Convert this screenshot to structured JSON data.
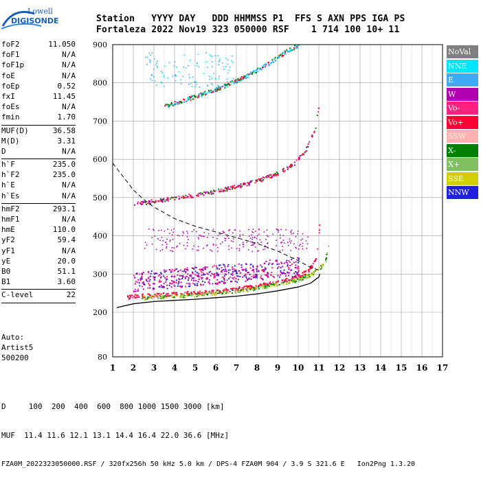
{
  "logo": {
    "line1": "Lowell",
    "line2": "DIGISONDE"
  },
  "header": {
    "line1": "Station   YYYY DAY   DDD HHMMSS P1  FFS S AXN PPS IGA PS",
    "line2": "Fortaleza 2022 Nov19 323 050000 RSF    1 714 100 10+ 11"
  },
  "params": {
    "group1": [
      {
        "name": "foF2",
        "value": "11.050"
      },
      {
        "name": "foF1",
        "value": "N/A"
      },
      {
        "name": "foF1p",
        "value": "N/A"
      },
      {
        "name": "foE",
        "value": "N/A"
      },
      {
        "name": "foEp",
        "value": "0.52"
      },
      {
        "name": "fxI",
        "value": "11.45"
      },
      {
        "name": "foEs",
        "value": "N/A"
      },
      {
        "name": "fmin",
        "value": "1.70"
      }
    ],
    "group2": [
      {
        "name": "MUF(D)",
        "value": "36.58"
      },
      {
        "name": "M(D)",
        "value": "3.31"
      },
      {
        "name": "D",
        "value": "N/A"
      }
    ],
    "group3": [
      {
        "name": "h`F",
        "value": "235.0"
      },
      {
        "name": "h`F2",
        "value": "235.0"
      },
      {
        "name": "h`E",
        "value": "N/A"
      },
      {
        "name": "h`Es",
        "value": "N/A"
      }
    ],
    "group4": [
      {
        "name": "hmF2",
        "value": "293.1"
      },
      {
        "name": "hmF1",
        "value": "N/A"
      },
      {
        "name": "hmE",
        "value": "110.0"
      },
      {
        "name": "yF2",
        "value": "59.4"
      },
      {
        "name": "yF1",
        "value": "N/A"
      },
      {
        "name": "yE",
        "value": "20.0"
      },
      {
        "name": "B0",
        "value": "51.1"
      },
      {
        "name": "B1",
        "value": "3.60"
      }
    ],
    "group5": [
      {
        "name": "C-level",
        "value": "22"
      }
    ]
  },
  "autoscaling": {
    "line1": "Auto:",
    "line2": "Artist5",
    "line3": "500200"
  },
  "legend": [
    {
      "label": "NoVal",
      "color": "#808080"
    },
    {
      "label": "NNE",
      "color": "#00e5ff"
    },
    {
      "label": "E",
      "color": "#3fa9f5"
    },
    {
      "label": "W",
      "color": "#b000b0"
    },
    {
      "label": "Vo-",
      "color": "#ff2080"
    },
    {
      "label": "Vo+",
      "color": "#ff0030"
    },
    {
      "label": "SSW",
      "color": "#ffb0b0"
    },
    {
      "label": "X-",
      "color": "#008000"
    },
    {
      "label": "X+",
      "color": "#80c060"
    },
    {
      "label": "SSE",
      "color": "#d0d000"
    },
    {
      "label": "NNW",
      "color": "#2020e0"
    }
  ],
  "footer": {
    "line1": "D     100  200  400  600  800 1000 1500 3000 [km]",
    "line2": "MUF  11.4 11.6 12.1 13.1 14.4 16.4 22.0 36.6 [MHz]",
    "line3": "FZA0M_2022323050000.RSF / 320fx256h 50 kHz 5.0 km / DPS-4 FZA0M 904 / 3.9 S 321.6 E   Ion2Png 1.3.20"
  },
  "chart_data": {
    "type": "scatter",
    "xlim": [
      1,
      17
    ],
    "ylim": [
      80,
      900
    ],
    "x_ticks": [
      "1",
      "2",
      "3",
      "4",
      "5",
      "6",
      "7",
      "8",
      "9",
      "10",
      "11",
      "12",
      "13",
      "14",
      "15",
      "16",
      "17"
    ],
    "y_ticks": [
      "80",
      "200",
      "300",
      "400",
      "500",
      "600",
      "700",
      "800",
      "900"
    ],
    "grid": true,
    "traces": [
      {
        "name": "O-trace F2",
        "points": [
          [
            1.7,
            240
          ],
          [
            2,
            243
          ],
          [
            3,
            246
          ],
          [
            4,
            249
          ],
          [
            5,
            252
          ],
          [
            6,
            256
          ],
          [
            7,
            262
          ],
          [
            8,
            270
          ],
          [
            9,
            280
          ],
          [
            9.5,
            287
          ],
          [
            10,
            296
          ],
          [
            10.5,
            312
          ],
          [
            10.8,
            335
          ],
          [
            10.95,
            380
          ],
          [
            11.05,
            460
          ]
        ]
      },
      {
        "name": "X-trace F2",
        "points": [
          [
            2.4,
            238
          ],
          [
            3,
            241
          ],
          [
            4,
            244
          ],
          [
            5,
            247
          ],
          [
            6,
            251
          ],
          [
            7,
            257
          ],
          [
            8,
            265
          ],
          [
            9,
            274
          ],
          [
            10,
            287
          ],
          [
            10.6,
            300
          ],
          [
            11,
            315
          ],
          [
            11.3,
            335
          ],
          [
            11.45,
            380
          ],
          [
            11.5,
            460
          ]
        ]
      },
      {
        "name": "Second hop",
        "points": [
          [
            2,
            484
          ],
          [
            3,
            492
          ],
          [
            4,
            500
          ],
          [
            5,
            508
          ],
          [
            6,
            518
          ],
          [
            7,
            530
          ],
          [
            8,
            545
          ],
          [
            9,
            565
          ],
          [
            9.8,
            590
          ],
          [
            10.4,
            630
          ],
          [
            10.8,
            680
          ],
          [
            11,
            750
          ]
        ]
      },
      {
        "name": "Third hop",
        "points": [
          [
            3.5,
            740
          ],
          [
            4.5,
            757
          ],
          [
            5.5,
            775
          ],
          [
            6.5,
            795
          ],
          [
            7.5,
            820
          ],
          [
            8.5,
            850
          ],
          [
            9.3,
            880
          ],
          [
            10,
            900
          ]
        ]
      },
      {
        "name": "Spread F",
        "points": [
          [
            2,
            280
          ],
          [
            3,
            285
          ],
          [
            4,
            290
          ],
          [
            5,
            295
          ],
          [
            6,
            300
          ],
          [
            7,
            305
          ],
          [
            8,
            310
          ],
          [
            9,
            315
          ],
          [
            10,
            320
          ]
        ]
      }
    ],
    "profile": [
      [
        1.2,
        212
      ],
      [
        2,
        222
      ],
      [
        3,
        228
      ],
      [
        4,
        231
      ],
      [
        5,
        234
      ],
      [
        6,
        238
      ],
      [
        7,
        242
      ],
      [
        8,
        248
      ],
      [
        9,
        256
      ],
      [
        10,
        266
      ],
      [
        10.6,
        276
      ],
      [
        11,
        292
      ],
      [
        11.05,
        300
      ]
    ],
    "muf_curve": [
      [
        1,
        590
      ],
      [
        1.5,
        555
      ],
      [
        2,
        520
      ],
      [
        2.5,
        495
      ],
      [
        3,
        475
      ],
      [
        4,
        445
      ],
      [
        5,
        425
      ],
      [
        6,
        410
      ],
      [
        7,
        395
      ],
      [
        8,
        380
      ],
      [
        9,
        360
      ],
      [
        10,
        335
      ],
      [
        10.5,
        320
      ],
      [
        11,
        310
      ]
    ]
  }
}
